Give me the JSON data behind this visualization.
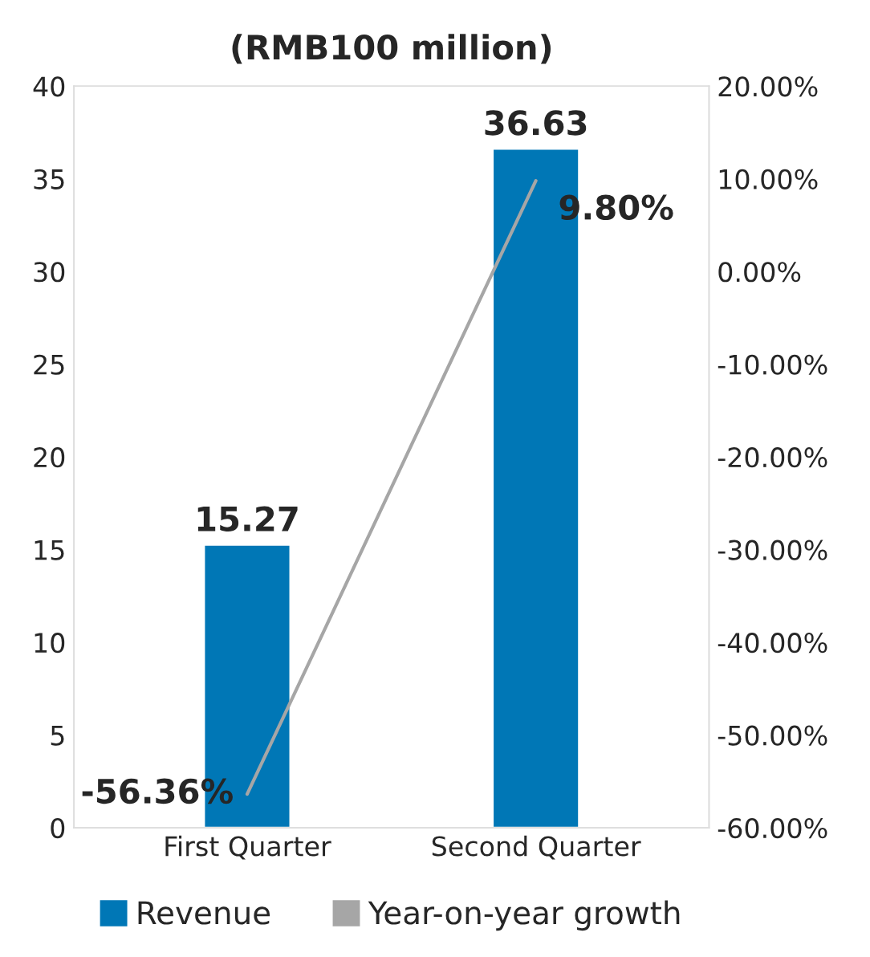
{
  "chart_data": {
    "type": "bar",
    "title": "(RMB100 million)",
    "categories": [
      "First Quarter",
      "Second Quarter"
    ],
    "series": [
      {
        "name": "Revenue",
        "color": "#0077b6",
        "values": [
          15.27,
          36.63
        ],
        "value_labels": [
          "15.27",
          "36.63"
        ]
      },
      {
        "name": "Year-on-year growth",
        "type": "line",
        "axis": "y2",
        "color": "#a6a6a6",
        "values": [
          -56.36,
          9.8
        ],
        "value_labels": [
          "-56.36%",
          "9.80%"
        ]
      }
    ],
    "ylim": [
      0,
      40
    ],
    "yticks": [
      0,
      5,
      10,
      15,
      20,
      25,
      30,
      35,
      40
    ],
    "y2lim": [
      -60,
      20
    ],
    "y2ticks": [
      {
        "value": -60,
        "label": "-60.00%"
      },
      {
        "value": -50,
        "label": "-50.00%"
      },
      {
        "value": -40,
        "label": "-40.00%"
      },
      {
        "value": -30,
        "label": "-30.00%"
      },
      {
        "value": -20,
        "label": "-20.00%"
      },
      {
        "value": -10,
        "label": "-10.00%"
      },
      {
        "value": 0,
        "label": "0.00%"
      },
      {
        "value": 10,
        "label": "10.00%"
      },
      {
        "value": 20,
        "label": "20.00%"
      }
    ],
    "grid": false,
    "legend": "bottom",
    "marker": "none",
    "line_style": "solid"
  }
}
